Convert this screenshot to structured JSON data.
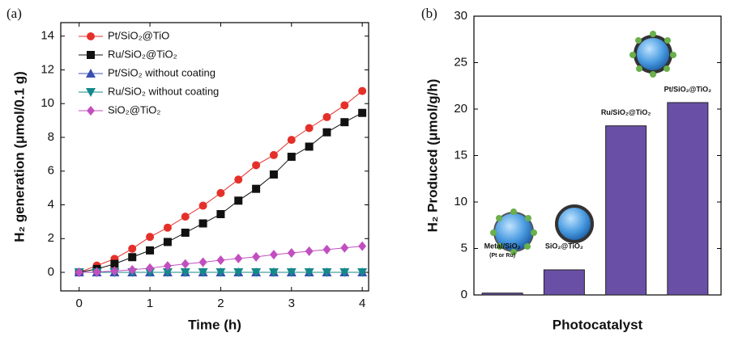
{
  "chart_data": [
    {
      "type": "line",
      "panel": "(a)",
      "xlabel": "Time (h)",
      "ylabel": "H₂ generation (μmol/0.1 g)",
      "x": [
        0,
        0.25,
        0.5,
        0.75,
        1,
        1.25,
        1.5,
        1.75,
        2,
        2.25,
        2.5,
        2.75,
        3,
        3.25,
        3.5,
        3.75,
        4
      ],
      "series": [
        {
          "name": "Pt/SiO₂@TiO",
          "color": "#e5302a",
          "marker": "circle",
          "values": [
            0,
            0.4,
            0.8,
            1.4,
            2.1,
            2.65,
            3.3,
            3.95,
            4.7,
            5.5,
            6.35,
            6.95,
            7.85,
            8.55,
            9.2,
            9.9,
            10.75
          ]
        },
        {
          "name": "Ru/SiO₂@TiO₂",
          "color": "#111111",
          "marker": "square",
          "values": [
            0,
            0.2,
            0.5,
            0.9,
            1.3,
            1.8,
            2.35,
            2.9,
            3.45,
            4.25,
            4.95,
            5.8,
            6.85,
            7.45,
            8.3,
            8.9,
            9.45
          ]
        },
        {
          "name": "Pt/SiO₂ without coating",
          "color": "#3a4fb2",
          "marker": "triangle-up",
          "values": [
            0,
            0,
            0,
            0,
            0,
            0,
            0,
            0,
            0,
            0,
            0,
            0,
            0,
            0,
            0,
            0,
            0
          ]
        },
        {
          "name": "Ru/SiO₂ without coating",
          "color": "#15898a",
          "marker": "triangle-down",
          "values": [
            0,
            0,
            0,
            0,
            0,
            0,
            0,
            0,
            0,
            0,
            0,
            0,
            0,
            0,
            0,
            0,
            0
          ]
        },
        {
          "name": "SiO₂@TiO₂",
          "color": "#c24fc0",
          "marker": "diamond",
          "values": [
            0,
            0.02,
            0.08,
            0.15,
            0.25,
            0.38,
            0.5,
            0.6,
            0.72,
            0.82,
            0.92,
            1.05,
            1.15,
            1.25,
            1.35,
            1.45,
            1.55
          ]
        }
      ],
      "xlim": [
        -0.26,
        4.09
      ],
      "xticks": [
        0,
        1,
        2,
        3,
        4
      ],
      "ylim": [
        -1.1,
        14.8
      ],
      "yticks": [
        0,
        2,
        4,
        6,
        8,
        10,
        12,
        14
      ],
      "legend": "upper left"
    },
    {
      "type": "bar",
      "panel": "(b)",
      "xlabel": "Photocatalyst",
      "ylabel": "H₂ Produced (μmol/g/h)",
      "categories": [
        "Metal/SiO₂",
        "SiO₂@TiO₂",
        "Ru/SiO₂@TiO₂",
        "Pt/SiO₂@TiO₂"
      ],
      "annotation": "(Pt or Ru)",
      "values": [
        0.2,
        2.7,
        18.2,
        20.7
      ],
      "color": "#6a4fa6",
      "ylim": [
        0,
        30
      ],
      "yticks": [
        0,
        5,
        10,
        15,
        20,
        25,
        30
      ]
    }
  ]
}
